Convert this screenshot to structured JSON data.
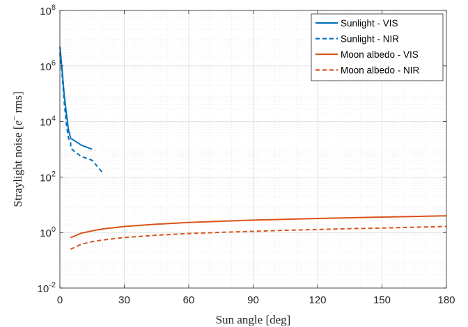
{
  "chart_data": {
    "type": "line",
    "xlabel": "Sun angle [deg]",
    "ylabel_main": "Straylight noise [",
    "ylabel_e": "e",
    "ylabel_sup": "−",
    "ylabel_tail": " rms]",
    "xlim": [
      0,
      180
    ],
    "ylim": [
      0.01,
      100000000
    ],
    "yscale": "log",
    "grid": true,
    "minor_grid": true,
    "legend_position": "top-right",
    "x_ticks": [
      0,
      30,
      60,
      90,
      120,
      150,
      180
    ],
    "x_tick_labels": [
      "0",
      "30",
      "60",
      "90",
      "120",
      "150",
      "180"
    ],
    "y_ticks": [
      {
        "value": 0.01,
        "base": "10",
        "exp": "-2"
      },
      {
        "value": 1,
        "base": "10",
        "exp": "0"
      },
      {
        "value": 100,
        "base": "10",
        "exp": "2"
      },
      {
        "value": 10000,
        "base": "10",
        "exp": "4"
      },
      {
        "value": 1000000,
        "base": "10",
        "exp": "6"
      },
      {
        "value": 100000000,
        "base": "10",
        "exp": "8"
      }
    ],
    "series": [
      {
        "name": "Sunlight - VIS",
        "color": "#0072BD",
        "dash": "solid",
        "x": [
          0,
          1,
          2,
          3,
          4,
          5,
          10,
          15
        ],
        "y": [
          5000000,
          800000,
          90000,
          20000,
          5000,
          2500,
          1400,
          1000
        ]
      },
      {
        "name": "Sunlight - NIR",
        "color": "#0072BD",
        "dash": "dashed",
        "x": [
          0,
          1,
          2,
          3,
          4,
          5,
          5.1,
          7,
          10,
          15,
          20
        ],
        "y": [
          3000000,
          500000,
          50000,
          8000,
          2500,
          1800,
          1100,
          800,
          550,
          400,
          140
        ]
      },
      {
        "name": "Moon albedo - VIS",
        "color": "#D95319",
        "dash": "solid",
        "x": [
          5,
          10,
          15,
          20,
          30,
          45,
          60,
          75,
          90,
          105,
          120,
          135,
          150,
          165,
          180
        ],
        "y": [
          0.65,
          0.95,
          1.15,
          1.35,
          1.65,
          2.0,
          2.3,
          2.55,
          2.8,
          3.0,
          3.2,
          3.4,
          3.6,
          3.8,
          4.0
        ]
      },
      {
        "name": "Moon albedo - NIR",
        "color": "#D95319",
        "dash": "dashed",
        "x": [
          5,
          10,
          15,
          20,
          30,
          45,
          60,
          75,
          90,
          105,
          120,
          135,
          150,
          165,
          180
        ],
        "y": [
          0.25,
          0.38,
          0.47,
          0.54,
          0.66,
          0.8,
          0.92,
          1.02,
          1.1,
          1.2,
          1.28,
          1.38,
          1.45,
          1.55,
          1.65
        ]
      }
    ]
  }
}
